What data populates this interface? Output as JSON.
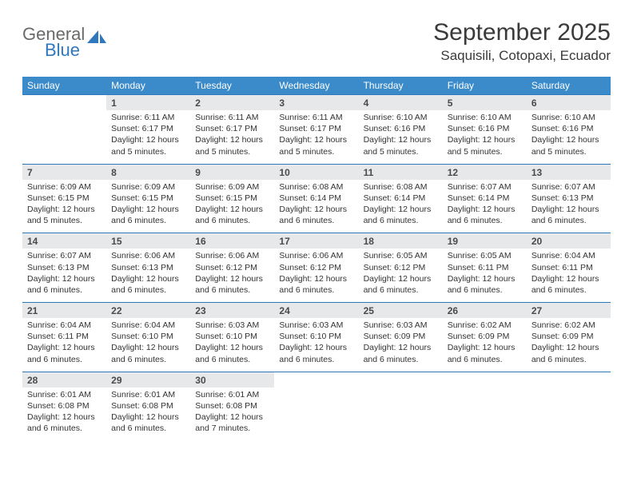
{
  "brand": {
    "part1": "General",
    "part2": "Blue",
    "color_grey": "#6a6a6a",
    "color_blue": "#2f78bd"
  },
  "header": {
    "month_title": "September 2025",
    "location": "Saquisili, Cotopaxi, Ecuador"
  },
  "colors": {
    "header_bg": "#3b8aca",
    "daynum_bg": "#e7e8e9",
    "rule": "#2f78bd",
    "text": "#333333"
  },
  "day_names": [
    "Sunday",
    "Monday",
    "Tuesday",
    "Wednesday",
    "Thursday",
    "Friday",
    "Saturday"
  ],
  "weeks": [
    [
      null,
      {
        "n": "1",
        "sr": "Sunrise: 6:11 AM",
        "ss": "Sunset: 6:17 PM",
        "dl": "Daylight: 12 hours and 5 minutes."
      },
      {
        "n": "2",
        "sr": "Sunrise: 6:11 AM",
        "ss": "Sunset: 6:17 PM",
        "dl": "Daylight: 12 hours and 5 minutes."
      },
      {
        "n": "3",
        "sr": "Sunrise: 6:11 AM",
        "ss": "Sunset: 6:17 PM",
        "dl": "Daylight: 12 hours and 5 minutes."
      },
      {
        "n": "4",
        "sr": "Sunrise: 6:10 AM",
        "ss": "Sunset: 6:16 PM",
        "dl": "Daylight: 12 hours and 5 minutes."
      },
      {
        "n": "5",
        "sr": "Sunrise: 6:10 AM",
        "ss": "Sunset: 6:16 PM",
        "dl": "Daylight: 12 hours and 5 minutes."
      },
      {
        "n": "6",
        "sr": "Sunrise: 6:10 AM",
        "ss": "Sunset: 6:16 PM",
        "dl": "Daylight: 12 hours and 5 minutes."
      }
    ],
    [
      {
        "n": "7",
        "sr": "Sunrise: 6:09 AM",
        "ss": "Sunset: 6:15 PM",
        "dl": "Daylight: 12 hours and 5 minutes."
      },
      {
        "n": "8",
        "sr": "Sunrise: 6:09 AM",
        "ss": "Sunset: 6:15 PM",
        "dl": "Daylight: 12 hours and 6 minutes."
      },
      {
        "n": "9",
        "sr": "Sunrise: 6:09 AM",
        "ss": "Sunset: 6:15 PM",
        "dl": "Daylight: 12 hours and 6 minutes."
      },
      {
        "n": "10",
        "sr": "Sunrise: 6:08 AM",
        "ss": "Sunset: 6:14 PM",
        "dl": "Daylight: 12 hours and 6 minutes."
      },
      {
        "n": "11",
        "sr": "Sunrise: 6:08 AM",
        "ss": "Sunset: 6:14 PM",
        "dl": "Daylight: 12 hours and 6 minutes."
      },
      {
        "n": "12",
        "sr": "Sunrise: 6:07 AM",
        "ss": "Sunset: 6:14 PM",
        "dl": "Daylight: 12 hours and 6 minutes."
      },
      {
        "n": "13",
        "sr": "Sunrise: 6:07 AM",
        "ss": "Sunset: 6:13 PM",
        "dl": "Daylight: 12 hours and 6 minutes."
      }
    ],
    [
      {
        "n": "14",
        "sr": "Sunrise: 6:07 AM",
        "ss": "Sunset: 6:13 PM",
        "dl": "Daylight: 12 hours and 6 minutes."
      },
      {
        "n": "15",
        "sr": "Sunrise: 6:06 AM",
        "ss": "Sunset: 6:13 PM",
        "dl": "Daylight: 12 hours and 6 minutes."
      },
      {
        "n": "16",
        "sr": "Sunrise: 6:06 AM",
        "ss": "Sunset: 6:12 PM",
        "dl": "Daylight: 12 hours and 6 minutes."
      },
      {
        "n": "17",
        "sr": "Sunrise: 6:06 AM",
        "ss": "Sunset: 6:12 PM",
        "dl": "Daylight: 12 hours and 6 minutes."
      },
      {
        "n": "18",
        "sr": "Sunrise: 6:05 AM",
        "ss": "Sunset: 6:12 PM",
        "dl": "Daylight: 12 hours and 6 minutes."
      },
      {
        "n": "19",
        "sr": "Sunrise: 6:05 AM",
        "ss": "Sunset: 6:11 PM",
        "dl": "Daylight: 12 hours and 6 minutes."
      },
      {
        "n": "20",
        "sr": "Sunrise: 6:04 AM",
        "ss": "Sunset: 6:11 PM",
        "dl": "Daylight: 12 hours and 6 minutes."
      }
    ],
    [
      {
        "n": "21",
        "sr": "Sunrise: 6:04 AM",
        "ss": "Sunset: 6:11 PM",
        "dl": "Daylight: 12 hours and 6 minutes."
      },
      {
        "n": "22",
        "sr": "Sunrise: 6:04 AM",
        "ss": "Sunset: 6:10 PM",
        "dl": "Daylight: 12 hours and 6 minutes."
      },
      {
        "n": "23",
        "sr": "Sunrise: 6:03 AM",
        "ss": "Sunset: 6:10 PM",
        "dl": "Daylight: 12 hours and 6 minutes."
      },
      {
        "n": "24",
        "sr": "Sunrise: 6:03 AM",
        "ss": "Sunset: 6:10 PM",
        "dl": "Daylight: 12 hours and 6 minutes."
      },
      {
        "n": "25",
        "sr": "Sunrise: 6:03 AM",
        "ss": "Sunset: 6:09 PM",
        "dl": "Daylight: 12 hours and 6 minutes."
      },
      {
        "n": "26",
        "sr": "Sunrise: 6:02 AM",
        "ss": "Sunset: 6:09 PM",
        "dl": "Daylight: 12 hours and 6 minutes."
      },
      {
        "n": "27",
        "sr": "Sunrise: 6:02 AM",
        "ss": "Sunset: 6:09 PM",
        "dl": "Daylight: 12 hours and 6 minutes."
      }
    ],
    [
      {
        "n": "28",
        "sr": "Sunrise: 6:01 AM",
        "ss": "Sunset: 6:08 PM",
        "dl": "Daylight: 12 hours and 6 minutes."
      },
      {
        "n": "29",
        "sr": "Sunrise: 6:01 AM",
        "ss": "Sunset: 6:08 PM",
        "dl": "Daylight: 12 hours and 6 minutes."
      },
      {
        "n": "30",
        "sr": "Sunrise: 6:01 AM",
        "ss": "Sunset: 6:08 PM",
        "dl": "Daylight: 12 hours and 7 minutes."
      },
      null,
      null,
      null,
      null
    ]
  ]
}
